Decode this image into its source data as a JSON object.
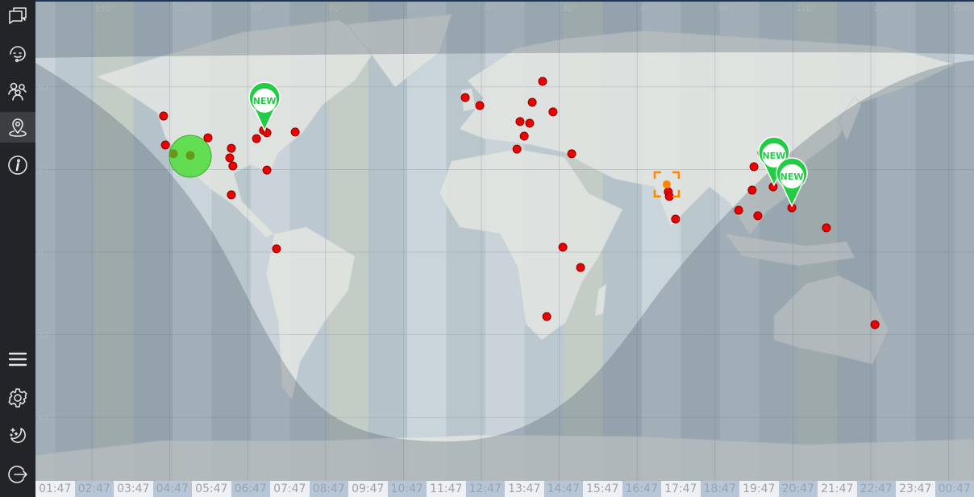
{
  "sidebar": {
    "top_items": [
      {
        "icon": "chat-icon",
        "label": "Chats"
      },
      {
        "icon": "support-headset-icon",
        "label": "Support"
      },
      {
        "icon": "users-icon",
        "label": "Users"
      },
      {
        "icon": "map-pin-icon",
        "label": "Map",
        "active": true
      },
      {
        "icon": "info-icon",
        "label": "Info"
      }
    ],
    "bottom_items": [
      {
        "icon": "menu-icon"
      },
      {
        "icon": "gear-icon"
      },
      {
        "icon": "night-mode-icon"
      },
      {
        "icon": "logout-icon"
      }
    ]
  },
  "map": {
    "longitude_labels": [
      "150°",
      "120°",
      "90°",
      "60°",
      "30°",
      "0°",
      "30°",
      "60°",
      "90°",
      "120°",
      "150°",
      "180°"
    ],
    "longitude_values": [
      -150,
      -120,
      -90,
      -60,
      -30,
      0,
      30,
      60,
      90,
      120,
      150,
      180
    ],
    "latitude_labels": [
      "60°",
      "30°",
      "0°",
      "30°",
      "60°"
    ],
    "latitude_values": [
      60,
      30,
      0,
      -30,
      -60
    ],
    "time_labels": [
      "01:47",
      "02:47",
      "03:47",
      "04:47",
      "05:47",
      "06:47",
      "07:47",
      "08:47",
      "09:47",
      "10:47",
      "11:47",
      "12:47",
      "13:47",
      "14:47",
      "15:47",
      "16:47",
      "17:47",
      "18:47",
      "19:47",
      "20:47",
      "21:47",
      "22:47",
      "23:47",
      "00:47"
    ],
    "colors": {
      "marker": "#ee0000",
      "new_pin": "#22cc44",
      "highlight_circle": "#55dd44",
      "target": "#ff8800"
    },
    "markers": [
      [
        -122.4,
        49.4
      ],
      [
        -121.7,
        38.9
      ],
      [
        -105.3,
        41.5
      ],
      [
        -96.3,
        37.7
      ],
      [
        -96.9,
        34.2
      ],
      [
        -95.7,
        31.3
      ],
      [
        -96.3,
        20.8
      ],
      [
        -86.6,
        41.2
      ],
      [
        -83.9,
        44.2
      ],
      [
        -82.6,
        43.3
      ],
      [
        -71.7,
        43.6
      ],
      [
        -82.6,
        29.8
      ],
      [
        -78.9,
        1.2
      ],
      [
        -6.2,
        56.1
      ],
      [
        -0.6,
        53.2
      ],
      [
        23.6,
        62
      ],
      [
        19.6,
        54.4
      ],
      [
        27.6,
        50.9
      ],
      [
        14.9,
        47.4
      ],
      [
        18.6,
        46.8
      ],
      [
        16.5,
        42.1
      ],
      [
        13.7,
        37.4
      ],
      [
        34.8,
        35.7
      ],
      [
        31.4,
        1.8
      ],
      [
        38.2,
        -5.6
      ],
      [
        25.2,
        -23.4
      ],
      [
        72,
        21.9
      ],
      [
        74.8,
        12
      ],
      [
        72.4,
        20.2
      ],
      [
        105,
        31
      ],
      [
        108.1,
        36
      ],
      [
        104.3,
        22.5
      ],
      [
        112.4,
        23.7
      ],
      [
        99.1,
        15.2
      ],
      [
        106.5,
        13.2
      ],
      [
        119.6,
        16.1
      ],
      [
        132.9,
        8.8
      ],
      [
        151.6,
        -26.3
      ]
    ],
    "new_pins": [
      {
        "label": "NEW",
        "lon": -83.5,
        "lat": 44.2
      },
      {
        "label": "NEW",
        "lon": 112.7,
        "lat": 24.3
      },
      {
        "label": "NEW",
        "lon": 119.6,
        "lat": 16.7
      }
    ],
    "highlight_cluster": {
      "lon": -112.1,
      "lat": 34.8,
      "points": [
        [
          -118.6,
          35.7
        ],
        [
          -112.1,
          35.1
        ]
      ]
    },
    "selected_target": {
      "lon": 71.4,
      "lat": 24.6
    }
  }
}
